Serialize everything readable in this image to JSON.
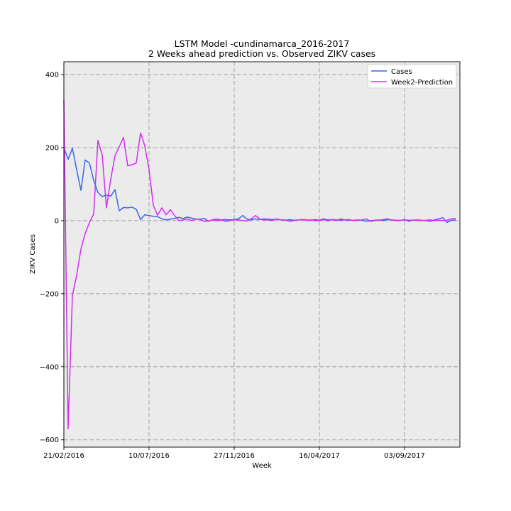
{
  "chart_data": {
    "type": "line",
    "title_line1": "LSTM Model -cundinamarca_2016-2017",
    "title_line2": "2 Weeks ahead prediction vs. Observed ZIKV cases",
    "xlabel": "Week",
    "ylabel": "ZIKV Cases",
    "xlim": [
      0,
      93
    ],
    "ylim": [
      -620,
      435
    ],
    "yticks": [
      -600,
      -400,
      -200,
      0,
      200,
      400
    ],
    "xtick_positions": [
      0,
      20,
      40,
      60,
      80
    ],
    "xtick_labels": [
      "21/02/2016",
      "10/07/2016",
      "27/11/2016",
      "16/04/2017",
      "03/09/2017"
    ],
    "grid": true,
    "legend_position": "upper-right",
    "colors": {
      "background": "#ebebeb",
      "grid": "#b0b0b0"
    },
    "series": [
      {
        "name": "Cases",
        "color": "#3b66e8",
        "values": [
          200,
          168,
          198,
          140,
          83,
          166,
          158,
          110,
          77,
          66,
          70,
          67,
          85,
          27,
          36,
          35,
          37,
          31,
          3,
          16,
          14,
          12,
          11,
          5,
          2,
          4,
          6,
          9,
          6,
          10,
          7,
          4,
          4,
          6,
          -2,
          3,
          4,
          2,
          3,
          2,
          3,
          5,
          14,
          4,
          2,
          5,
          3,
          5,
          4,
          3,
          4,
          2,
          1,
          3,
          1,
          2,
          3,
          2,
          1,
          3,
          1,
          5,
          2,
          3,
          2,
          1,
          2,
          1,
          1,
          2,
          1,
          -2,
          0,
          1,
          2,
          0,
          3,
          2,
          1,
          1,
          2,
          1,
          1,
          2,
          1,
          0,
          -2,
          2,
          5,
          8,
          -5,
          1,
          2
        ]
      },
      {
        "name": "Week2-Prediction",
        "color": "#d42cf0",
        "values": [
          330,
          -570,
          -205,
          -150,
          -78,
          -35,
          -5,
          18,
          220,
          180,
          35,
          113,
          178,
          202,
          228,
          150,
          153,
          158,
          240,
          205,
          140,
          42,
          15,
          35,
          16,
          30,
          14,
          0,
          2,
          5,
          0,
          5,
          3,
          -2,
          -1,
          2,
          0,
          2,
          -2,
          0,
          2,
          2,
          0,
          -1,
          5,
          14,
          4,
          2,
          2,
          0,
          5,
          2,
          2,
          -2,
          0,
          2,
          3,
          1,
          2,
          0,
          0,
          3,
          -1,
          3,
          0,
          5,
          2,
          3,
          0,
          1,
          2,
          5,
          -2,
          0,
          1,
          3,
          5,
          2,
          0,
          0,
          3,
          -2,
          2,
          1,
          0,
          1,
          2,
          0,
          1,
          0,
          1,
          5,
          6
        ]
      }
    ]
  }
}
